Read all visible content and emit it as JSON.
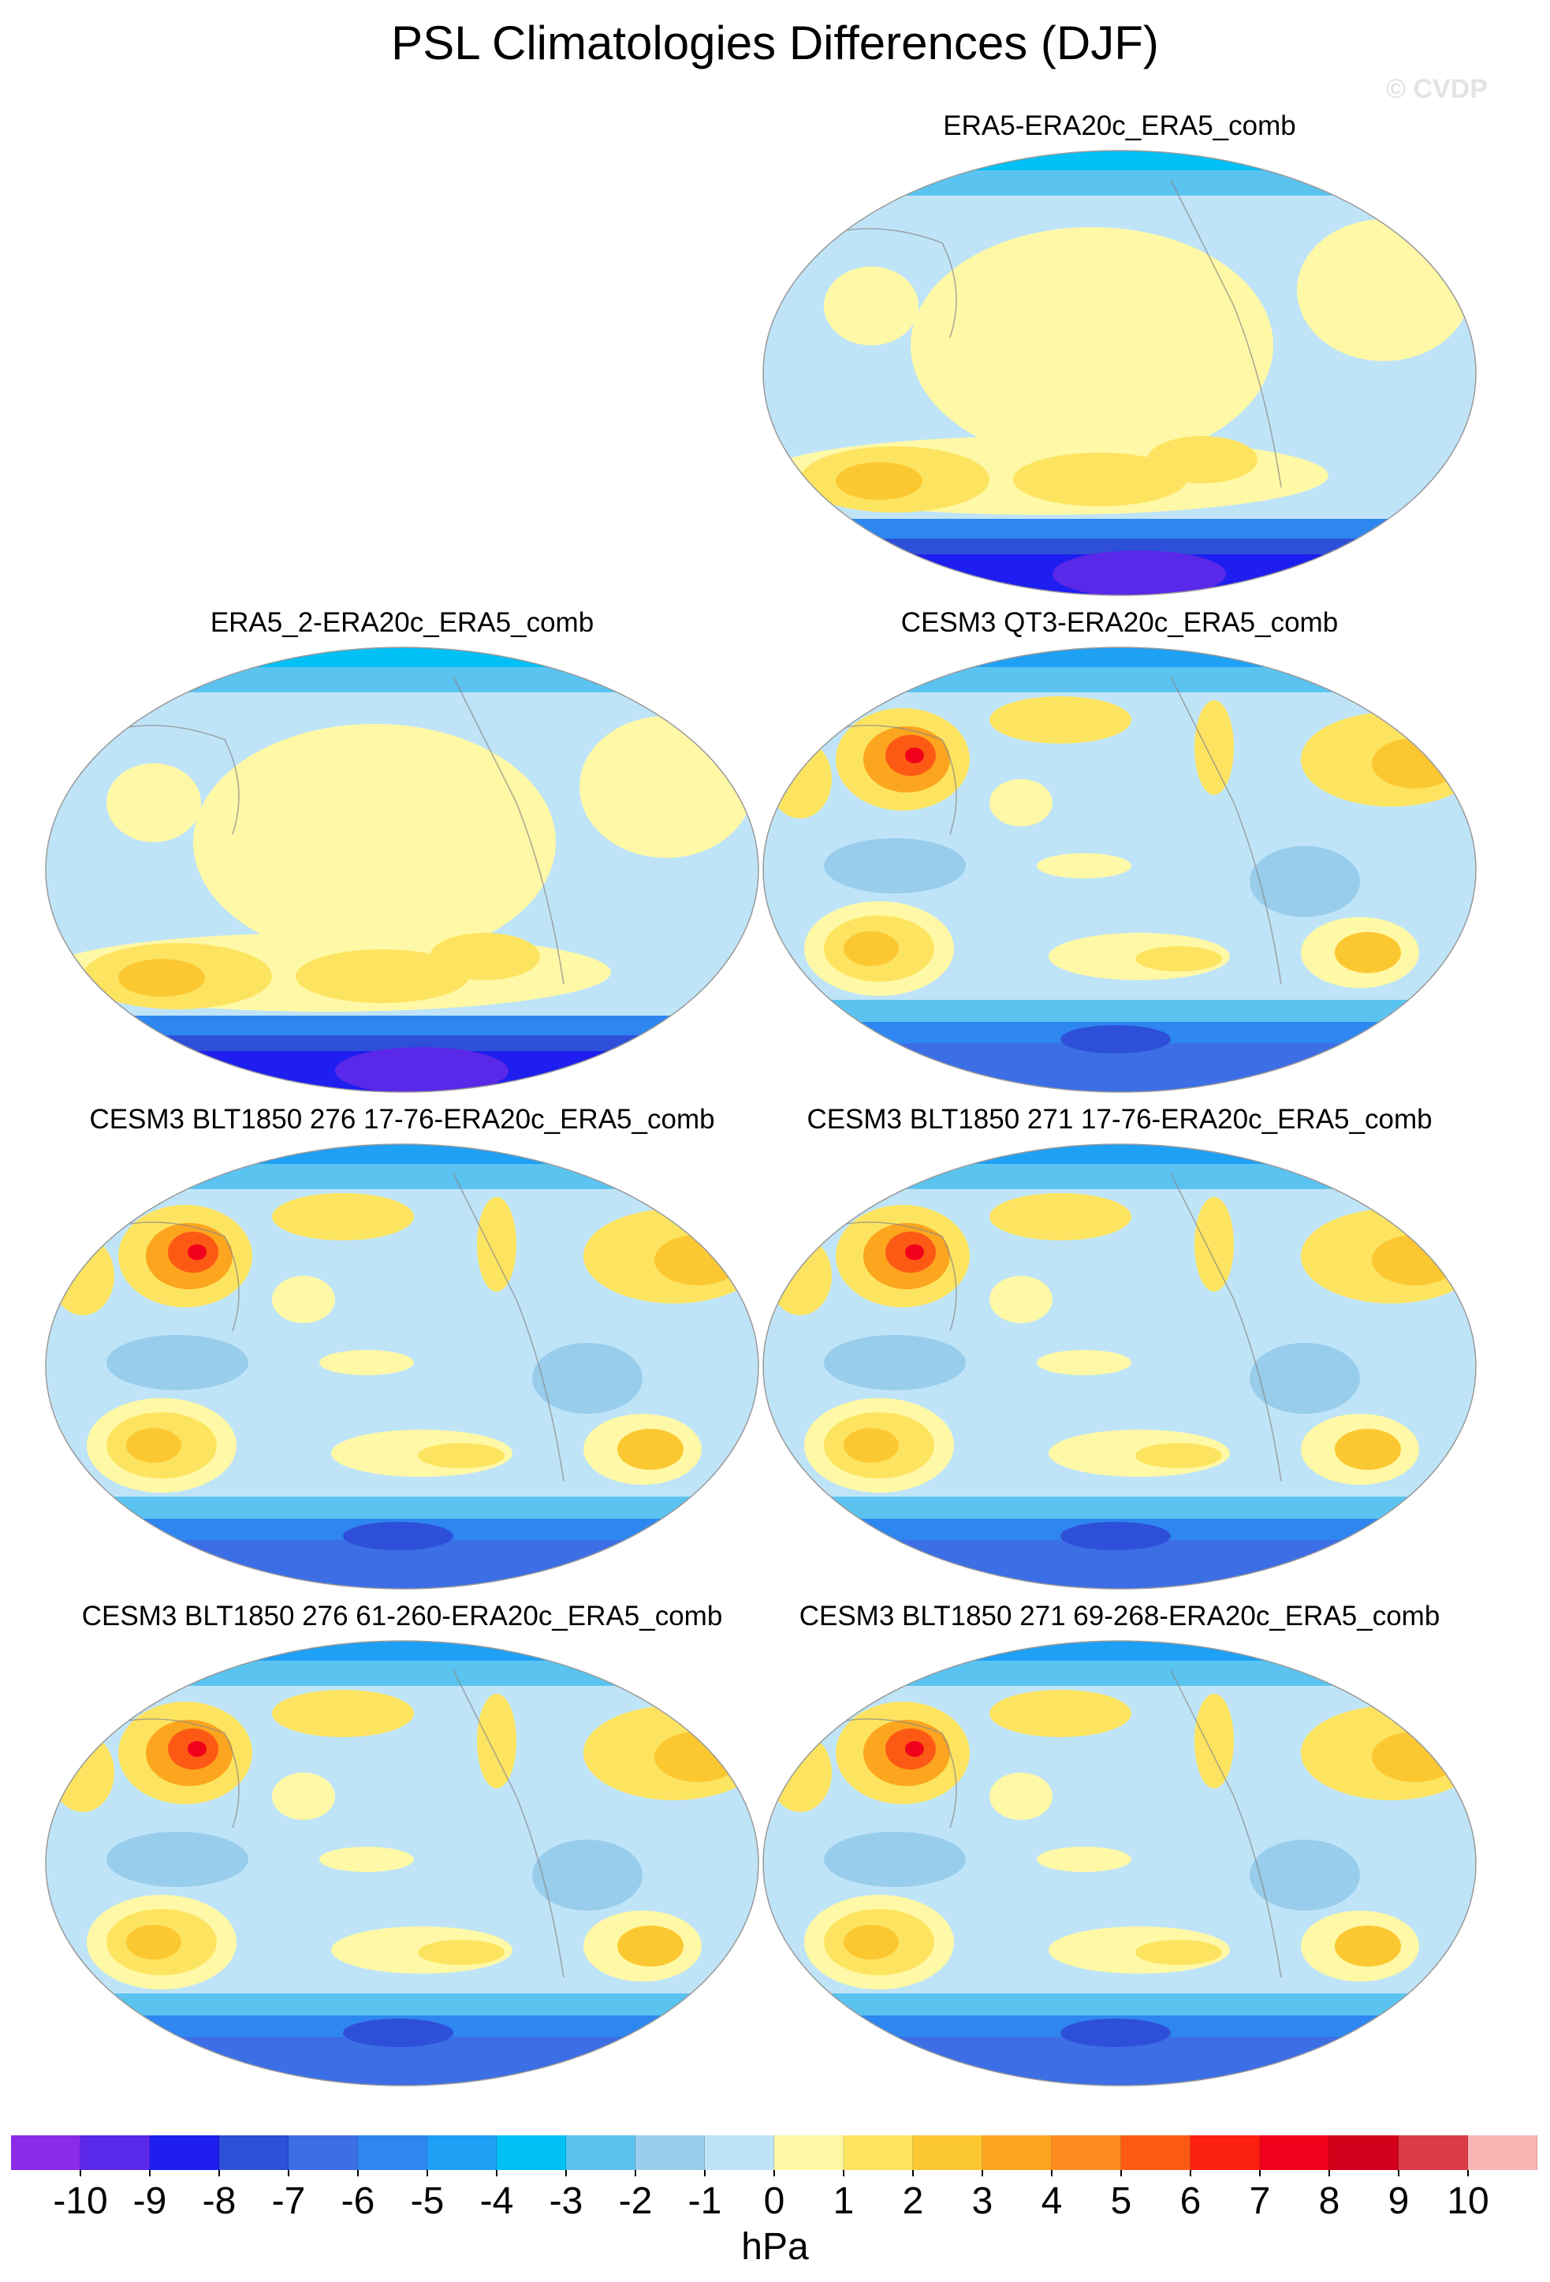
{
  "figure": {
    "title": "PSL Climatologies Differences (DJF)",
    "watermark": "© CVDP"
  },
  "panels": [
    {
      "title": "ERA5-ERA20c_ERA5_comb",
      "variant": "reanalysis"
    },
    {
      "title": "ERA5_2-ERA20c_ERA5_comb",
      "variant": "reanalysis"
    },
    {
      "title": "CESM3 QT3-ERA20c_ERA5_comb",
      "variant": "model"
    },
    {
      "title": "CESM3 BLT1850 276 17-76-ERA20c_ERA5_comb",
      "variant": "model"
    },
    {
      "title": "CESM3 BLT1850 271 17-76-ERA20c_ERA5_comb",
      "variant": "model"
    },
    {
      "title": "CESM3 BLT1850 276 61-260-ERA20c_ERA5_comb",
      "variant": "model"
    },
    {
      "title": "CESM3 BLT1850 271 69-268-ERA20c_ERA5_comb",
      "variant": "model"
    }
  ],
  "colorbar": {
    "units": "hPa",
    "labels": [
      "-10",
      "-9",
      "-8",
      "-7",
      "-6",
      "-5",
      "-4",
      "-3",
      "-2",
      "-1",
      "0",
      "1",
      "2",
      "3",
      "4",
      "5",
      "6",
      "7",
      "8",
      "9",
      "10"
    ],
    "colors": [
      "#8a2be8",
      "#5a28e8",
      "#1e1ef0",
      "#2e4fd8",
      "#3c6ee6",
      "#2e86f0",
      "#1ea0f5",
      "#00c0f5",
      "#5ac3f0",
      "#98cdec",
      "#bfe4f8",
      "#fff8a6",
      "#fde460",
      "#fcc832",
      "#fca51e",
      "#fc8c1e",
      "#fc5a14",
      "#fc2010",
      "#f0001a",
      "#d2001a",
      "#dc3c46",
      "#fab4b4"
    ]
  }
}
